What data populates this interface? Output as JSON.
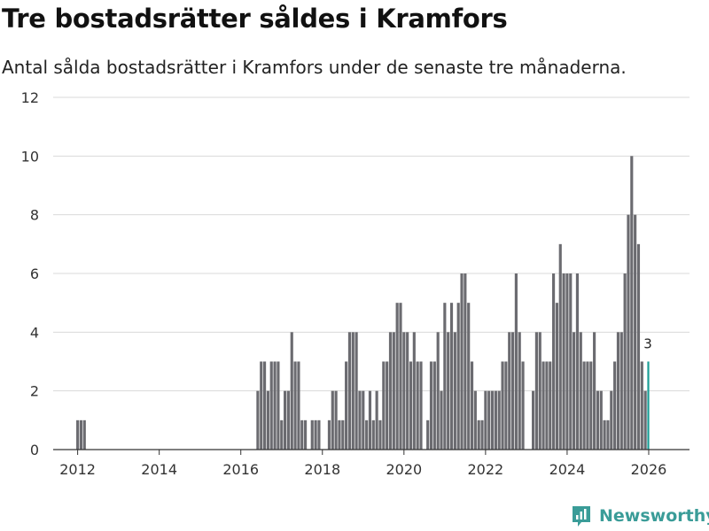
{
  "header": {
    "title": "Tre bostadsrätter såldes i Kramfors",
    "subtitle": "Antal sålda bostadsrätter i Kramfors under de senaste tre månaderna."
  },
  "brand": {
    "name": "Newsworthy",
    "color": "#3a9c98"
  },
  "chart_data": {
    "type": "bar",
    "title": "Tre bostadsrätter såldes i Kramfors",
    "subtitle": "Antal sålda bostadsrätter i Kramfors under de senaste tre månaderna.",
    "xlabel": "",
    "ylabel": "",
    "ylim": [
      0,
      12
    ],
    "yticks": [
      0,
      2,
      4,
      6,
      8,
      10,
      12
    ],
    "xlim": [
      2011.4,
      2027.0
    ],
    "xticks": [
      2012,
      2014,
      2016,
      2018,
      2020,
      2022,
      2024,
      2026
    ],
    "grid": true,
    "bar_color": "#6b6b70",
    "highlight_color": "#1a9e96",
    "highlight_label": "3",
    "start_year": 2011,
    "start_month": 12,
    "values": [
      0,
      1,
      1,
      1,
      0,
      0,
      0,
      0,
      0,
      0,
      0,
      0,
      0,
      0,
      0,
      0,
      0,
      0,
      0,
      0,
      0,
      0,
      0,
      0,
      0,
      0,
      0,
      0,
      0,
      0,
      0,
      0,
      0,
      0,
      0,
      0,
      0,
      0,
      0,
      0,
      0,
      0,
      0,
      0,
      0,
      0,
      0,
      0,
      0,
      0,
      0,
      0,
      0,
      0,
      2,
      3,
      3,
      2,
      3,
      3,
      3,
      1,
      2,
      2,
      4,
      3,
      3,
      1,
      1,
      0,
      1,
      1,
      1,
      0,
      0,
      1,
      2,
      2,
      1,
      1,
      3,
      4,
      4,
      4,
      2,
      2,
      1,
      2,
      1,
      2,
      1,
      3,
      3,
      4,
      4,
      5,
      5,
      4,
      4,
      3,
      4,
      3,
      3,
      0,
      1,
      3,
      3,
      4,
      2,
      5,
      4,
      5,
      4,
      5,
      6,
      6,
      5,
      3,
      2,
      1,
      1,
      2,
      2,
      2,
      2,
      2,
      3,
      3,
      4,
      4,
      6,
      4,
      3,
      0,
      0,
      2,
      4,
      4,
      3,
      3,
      3,
      6,
      5,
      7,
      6,
      6,
      6,
      4,
      6,
      4,
      3,
      3,
      3,
      4,
      2,
      2,
      1,
      1,
      2,
      3,
      4,
      4,
      6,
      8,
      10,
      8,
      7,
      3,
      2,
      3
    ]
  }
}
